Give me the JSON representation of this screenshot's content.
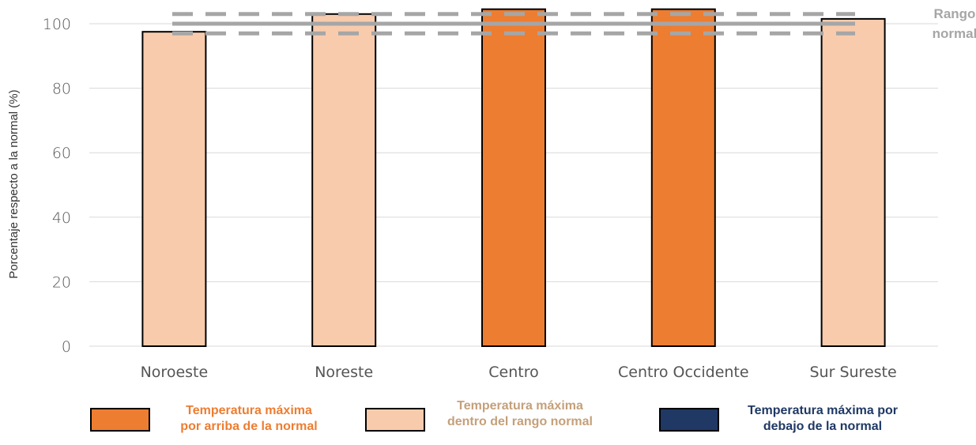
{
  "chart_data": {
    "type": "bar",
    "categories": [
      "Noroeste",
      "Noreste",
      "Centro",
      "Centro Occidente",
      "Sur Sureste"
    ],
    "values": [
      97.5,
      103,
      104.5,
      104.5,
      101.5
    ],
    "bar_classes": [
      "dentro",
      "dentro",
      "arriba",
      "arriba",
      "dentro"
    ],
    "ylabel": "Porcentaje respecto a la normal (%)",
    "xlabel": "",
    "ylim": [
      0,
      105
    ],
    "yticks": [
      0,
      20,
      40,
      60,
      80,
      100
    ],
    "grid": true,
    "normal_range": {
      "center": 100,
      "lower": 97,
      "upper": 103,
      "label_line1": "Rango",
      "label_line2": "normal"
    },
    "colors": {
      "arriba": "#ed7d31",
      "dentro": "#f8cbad",
      "debajo": "#1f3864",
      "range_line": "#a6a6a6",
      "grid": "#d9d9d9"
    }
  },
  "legend": [
    {
      "key": "arriba",
      "color": "#ed7d31",
      "text_color": "#ed7d31",
      "line1": "Temperatura máxima",
      "line2": "por arriba de la normal"
    },
    {
      "key": "dentro",
      "color": "#f8cbad",
      "text_color": "#c5a07a",
      "line1": "Temperatura máxima",
      "line2": "dentro del rango normal"
    },
    {
      "key": "debajo",
      "color": "#1f3864",
      "text_color": "#1f3864",
      "line1": "Temperatura máxima por",
      "line2": "debajo de la normal"
    }
  ]
}
